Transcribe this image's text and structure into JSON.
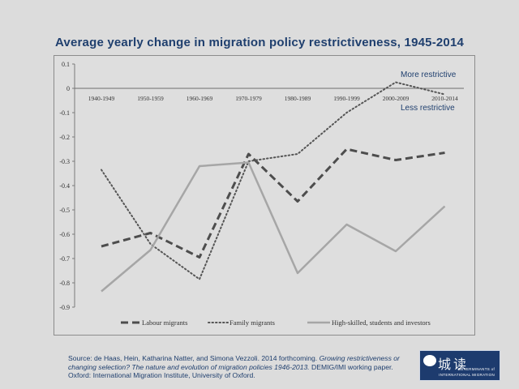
{
  "slide": {
    "title": "Average yearly change in migration policy restrictiveness, 1945-2014"
  },
  "annotations": {
    "more_restrictive": "More restrictive",
    "less_restrictive": "Less restrictive"
  },
  "source": {
    "prefix": "Source: de Haas, Hein, Katharina Natter, and Simona Vezzoli. 2014 forthcoming. ",
    "italic": "Growing restrictiveness or  changing selection? The nature and evolution of migration policies 1946-2013.",
    "suffix": " DEMIG/IMI working paper. Oxford:  International Migration Institute, University of Oxford."
  },
  "logo": {
    "line1": "DETERMINANTS of",
    "line2": "INTERNATIONAL MIGRATION"
  },
  "watermark": {
    "text": "城读"
  },
  "colors": {
    "title": "#1f3f6e",
    "labour": "#4d4d4d",
    "family": "#555555",
    "skilled": "#a6a6a6"
  },
  "chart_data": {
    "type": "line",
    "title": "",
    "xlabel": "",
    "ylabel": "",
    "categories": [
      "1940-1949",
      "1950-1959",
      "1960-1969",
      "1970-1979",
      "1980-1989",
      "1990-1999",
      "2000-2009",
      "2010-2014"
    ],
    "y_ticks": [
      "0.1",
      "0",
      "-0.1",
      "-0.2",
      "-0.3",
      "-0.4",
      "-0.5",
      "-0.6",
      "-0.7",
      "-0.8",
      "-0.9"
    ],
    "ylim": [
      -0.9,
      0.1
    ],
    "grid": false,
    "legend_position": "bottom",
    "series": [
      {
        "name": "Labour migrants",
        "style": "dashed",
        "values": [
          -0.65,
          -0.595,
          -0.695,
          -0.27,
          -0.465,
          -0.25,
          -0.295,
          -0.265
        ]
      },
      {
        "name": "Family migrants",
        "style": "dotted",
        "values": [
          -0.335,
          -0.64,
          -0.785,
          -0.3,
          -0.27,
          -0.1,
          0.025,
          -0.025
        ]
      },
      {
        "name": "High-skilled, students and investors",
        "style": "solid",
        "values": [
          -0.835,
          -0.665,
          -0.32,
          -0.305,
          -0.76,
          -0.56,
          -0.67,
          -0.485
        ]
      }
    ]
  }
}
